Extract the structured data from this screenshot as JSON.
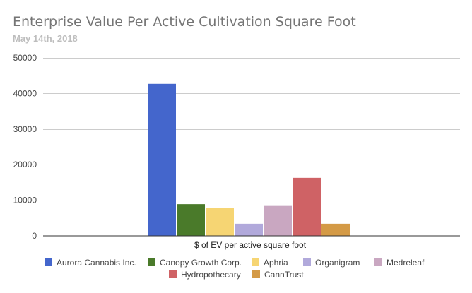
{
  "chart_data": {
    "type": "bar",
    "title": "Enterprise Value Per Active Cultivation Square Foot",
    "subtitle": "May 14th, 2018",
    "xlabel": "$ of EV per active square foot",
    "ylabel": "",
    "categories": [
      "$ of EV per active square foot"
    ],
    "ylim": [
      0,
      50000
    ],
    "yticks": [
      "0",
      "10000",
      "20000",
      "30000",
      "40000",
      "50000"
    ],
    "grid": true,
    "legend_position": "bottom",
    "series": [
      {
        "name": "Aurora Cannabis Inc.",
        "values": [
          42700
        ],
        "color": "#4466cc"
      },
      {
        "name": "Canopy Growth Corp.",
        "values": [
          8900
        ],
        "color": "#4a7a2a"
      },
      {
        "name": "Aphria",
        "values": [
          7800
        ],
        "color": "#f6d573"
      },
      {
        "name": "Organigram",
        "values": [
          3400
        ],
        "color": "#b1a9db"
      },
      {
        "name": "Medreleaf",
        "values": [
          8400
        ],
        "color": "#c9a7c1"
      },
      {
        "name": "Hydropothecary",
        "values": [
          16300
        ],
        "color": "#cf6265"
      },
      {
        "name": "CannTrust",
        "values": [
          3400
        ],
        "color": "#d49a46"
      }
    ]
  }
}
